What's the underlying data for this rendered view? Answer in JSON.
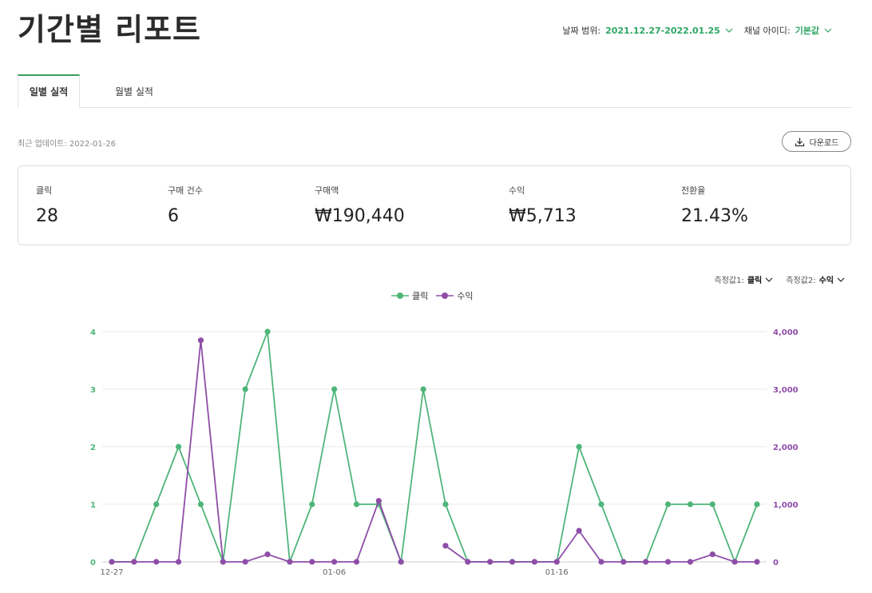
{
  "page": {
    "title": "기간별 리포트"
  },
  "filters": {
    "date_range_label": "날짜 범위:",
    "date_range_value": "2021.12.27-2022.01.25",
    "channel_label": "채널 아이디:",
    "channel_value": "기본값"
  },
  "tabs": [
    {
      "label": "일별 실적",
      "active": true
    },
    {
      "label": "월별 실적",
      "active": false
    }
  ],
  "update_text": "최근 업데이트: 2022-01-26",
  "download_label": "다운로드",
  "stats": [
    {
      "label": "클릭",
      "value": "28"
    },
    {
      "label": "구매 건수",
      "value": "6"
    },
    {
      "label": "구매액",
      "value": "₩190,440"
    },
    {
      "label": "수익",
      "value": "₩5,713"
    },
    {
      "label": "전환율",
      "value": "21.43%"
    }
  ],
  "measures": {
    "m1_label": "측정값1:",
    "m1_value": "클릭",
    "m2_label": "측정값2:",
    "m2_value": "수익"
  },
  "colors": {
    "accent": "#2ea763",
    "click": "#4fb57a",
    "revenue": "#8e4da8"
  },
  "chart_data": {
    "type": "line",
    "x": [
      "12-27",
      "12-28",
      "12-29",
      "12-30",
      "12-31",
      "01-01",
      "01-02",
      "01-03",
      "01-04",
      "01-05",
      "01-06",
      "01-07",
      "01-08",
      "01-09",
      "01-10",
      "01-11",
      "01-12",
      "01-13",
      "01-14",
      "01-15",
      "01-16",
      "01-17",
      "01-18",
      "01-19",
      "01-20",
      "01-21",
      "01-22",
      "01-23",
      "01-24",
      "01-25"
    ],
    "x_tick_labels": [
      "12-27",
      "01-06",
      "01-16"
    ],
    "series": [
      {
        "name": "클릭",
        "axis": "left",
        "values": [
          0,
          0,
          1,
          2,
          1,
          0,
          3,
          4,
          0,
          1,
          3,
          1,
          1,
          0,
          3,
          1,
          0,
          0,
          0,
          0,
          0,
          2,
          1,
          0,
          0,
          1,
          1,
          1,
          0,
          1
        ]
      },
      {
        "name": "수익",
        "axis": "right",
        "values": [
          0,
          0,
          0,
          0,
          3850,
          0,
          0,
          130,
          0,
          0,
          0,
          0,
          1060,
          0,
          null,
          280,
          0,
          0,
          0,
          0,
          0,
          540,
          0,
          0,
          0,
          0,
          0,
          130,
          0,
          0
        ]
      }
    ],
    "y_left": {
      "range": [
        0,
        4
      ],
      "ticks": [
        "0",
        "1",
        "2",
        "3",
        "4"
      ]
    },
    "y_right": {
      "range": [
        0,
        4000
      ],
      "ticks": [
        "0",
        "1,000",
        "2,000",
        "3,000",
        "4,000"
      ]
    },
    "grid": true,
    "legend_position": "top-center"
  }
}
